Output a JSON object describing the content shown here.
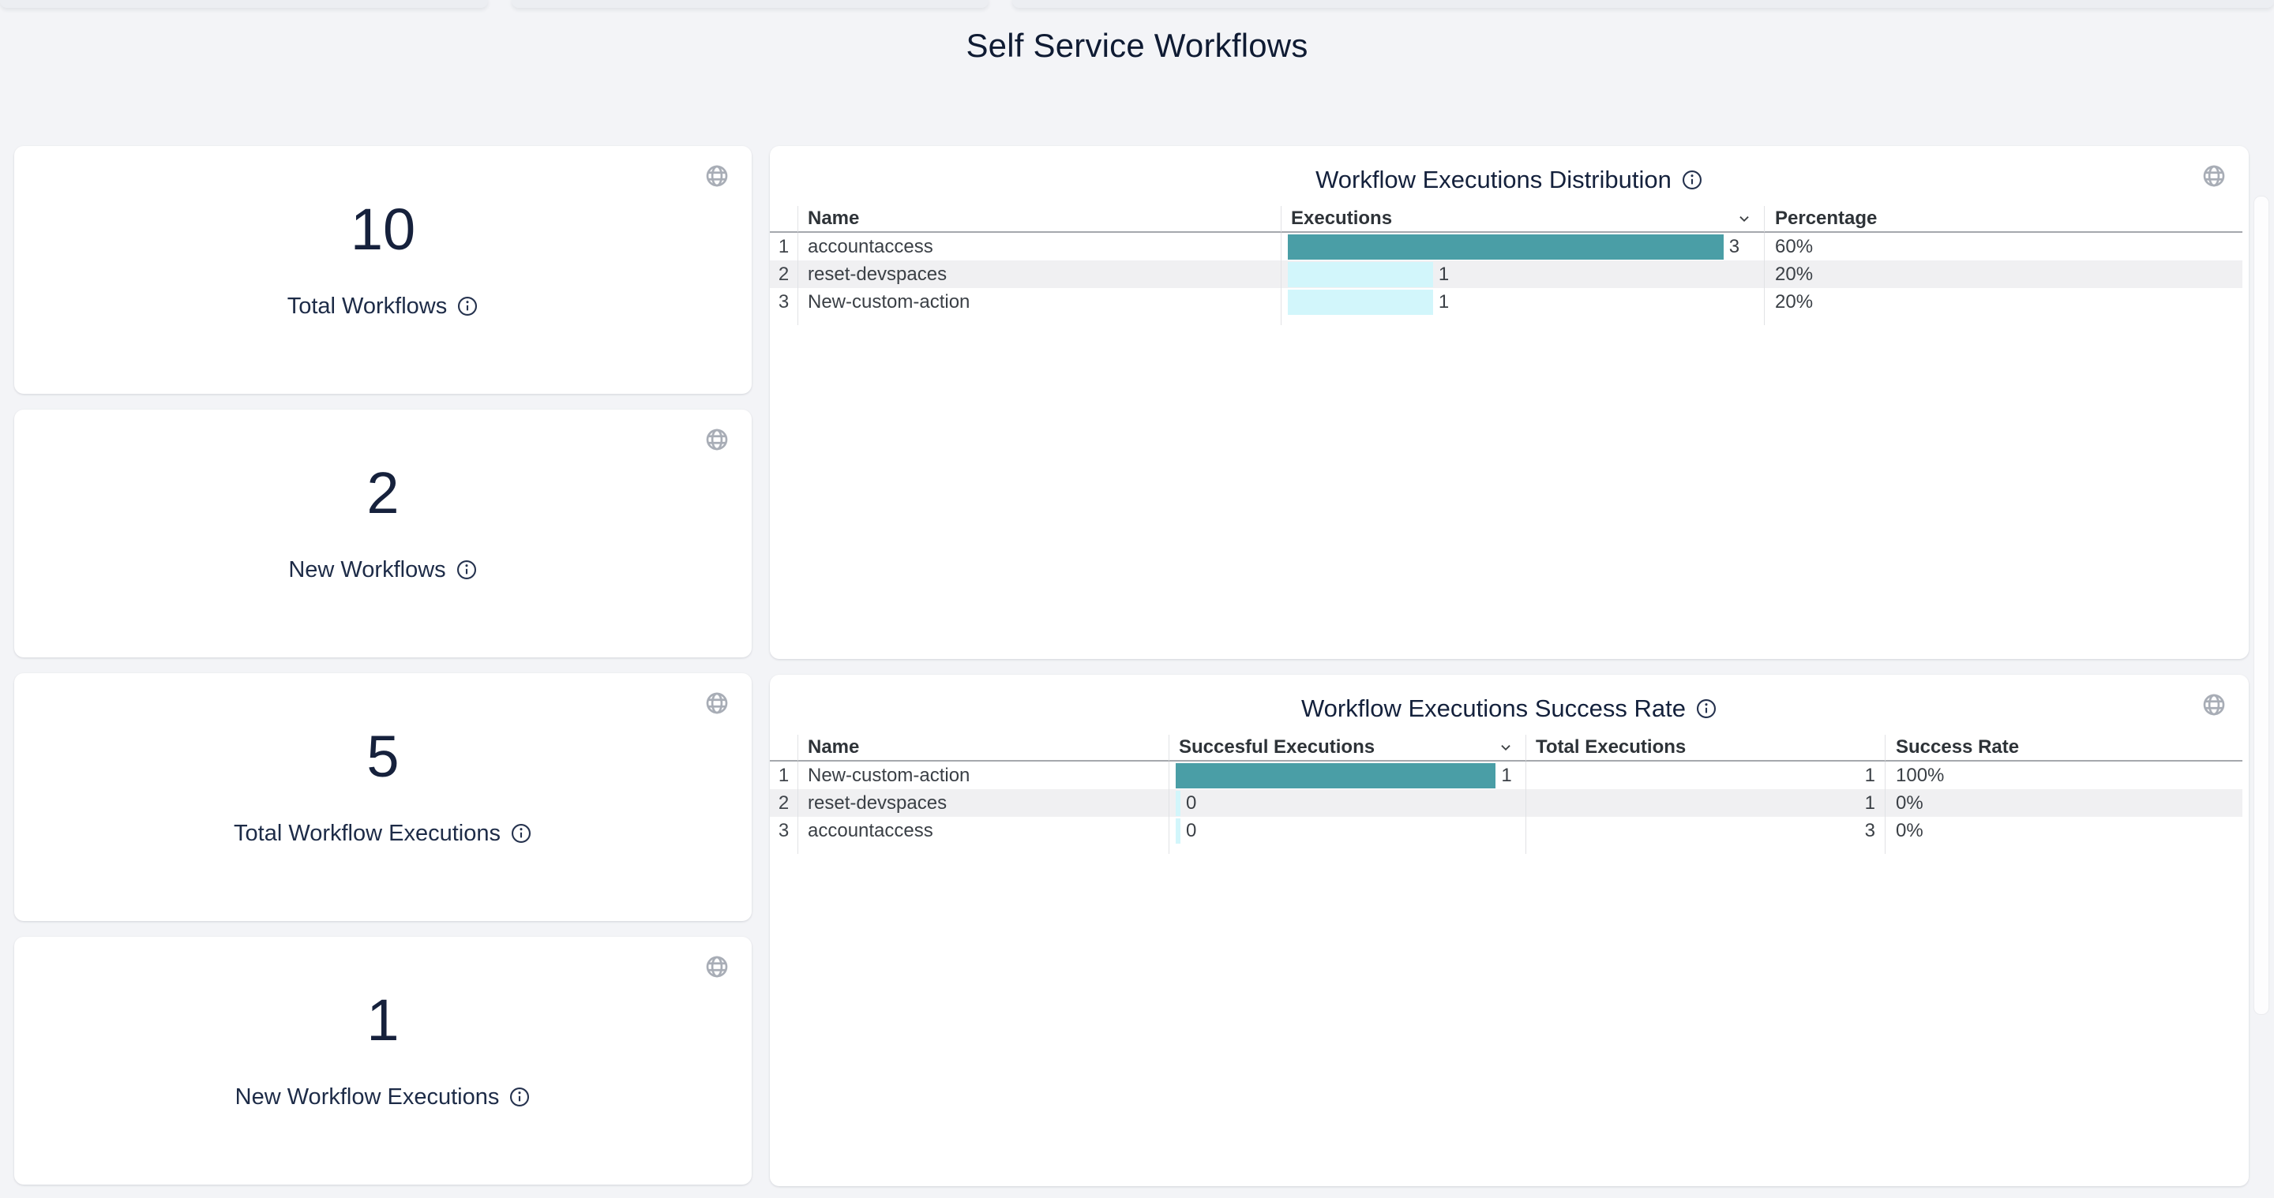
{
  "page": {
    "title": "Self Service Workflows"
  },
  "colors": {
    "background": "#f3f4f7",
    "card": "#ffffff",
    "accent_teal": "#4A9EA6",
    "accent_cyan": "#D2F6FB",
    "row_alt": "#f0f0f2",
    "text_primary": "#0f1b33",
    "text_table": "#3a3f45"
  },
  "icons": {
    "card_corner": "globe-icon",
    "tooltip": "info-icon",
    "sort_indicator": "chevron-down-icon"
  },
  "stat_cards": [
    {
      "value": "10",
      "label": "Total Workflows"
    },
    {
      "value": "2",
      "label": "New Workflows"
    },
    {
      "value": "5",
      "label": "Total Workflow Executions"
    },
    {
      "value": "1",
      "label": "New Workflow Executions"
    }
  ],
  "panels": [
    {
      "title": "Workflow Executions Distribution",
      "headers": {
        "name": "Name",
        "value": "Executions",
        "percentage": "Percentage"
      },
      "sorted_by": "Executions",
      "max_value": 3,
      "rows": [
        {
          "index": "1",
          "name": "accountaccess",
          "value": 3,
          "percentage": "60%"
        },
        {
          "index": "2",
          "name": "reset-devspaces",
          "value": 1,
          "percentage": "20%"
        },
        {
          "index": "3",
          "name": "New-custom-action",
          "value": 1,
          "percentage": "20%"
        }
      ]
    },
    {
      "title": "Workflow Executions Success Rate",
      "headers": {
        "name": "Name",
        "value": "Succesful Executions",
        "total": "Total Executions",
        "rate": "Success Rate"
      },
      "sorted_by": "Succesful Executions",
      "max_value": 1,
      "rows": [
        {
          "index": "1",
          "name": "New-custom-action",
          "value": 1,
          "total": 1,
          "rate": "100%"
        },
        {
          "index": "2",
          "name": "reset-devspaces",
          "value": 0,
          "total": 1,
          "rate": "0%"
        },
        {
          "index": "3",
          "name": "accountaccess",
          "value": 0,
          "total": 3,
          "rate": "0%"
        }
      ]
    }
  ]
}
